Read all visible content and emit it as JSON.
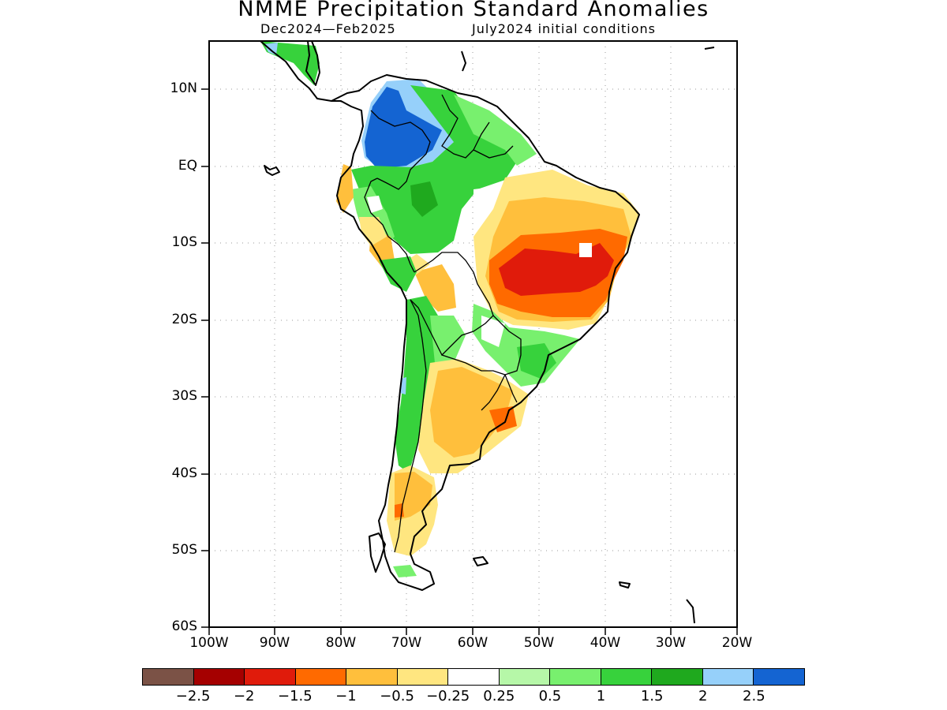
{
  "title": "NMME Precipitation Standard Anomalies",
  "subtitle": {
    "period": "Dec2024—Feb2025",
    "initial": "July2024 initial conditions"
  },
  "y_axis": {
    "ticks": [
      "10N",
      "EQ",
      "10S",
      "20S",
      "30S",
      "40S",
      "50S",
      "60S"
    ]
  },
  "x_axis": {
    "ticks": [
      "100W",
      "90W",
      "80W",
      "70W",
      "60W",
      "50W",
      "40W",
      "30W",
      "20W"
    ]
  },
  "colorbar": {
    "colors": [
      "#7b5246",
      "#a50000",
      "#e01b0b",
      "#ff6a00",
      "#ffbf3c",
      "#ffe680",
      "#ffffff",
      "#b6f7a8",
      "#78f06e",
      "#37d23c",
      "#1fa91e",
      "#96d0fa",
      "#1464d2"
    ],
    "labels": [
      "−2.5",
      "−2",
      "−1.5",
      "−1",
      "−0.5",
      "−0.25",
      "0.25",
      "0.5",
      "1",
      "1.5",
      "2",
      "2.5"
    ]
  },
  "anomaly_colors": {
    "dark_blue": "#1464d2",
    "light_blue": "#96d0fa",
    "green_dark": "#1fa91e",
    "green": "#37d23c",
    "green_light": "#78f06e",
    "green_pale": "#b6f7a8",
    "yellow": "#ffe680",
    "light_orange": "#ffbf3c",
    "orange": "#ff6a00",
    "red": "#e01b0b"
  }
}
